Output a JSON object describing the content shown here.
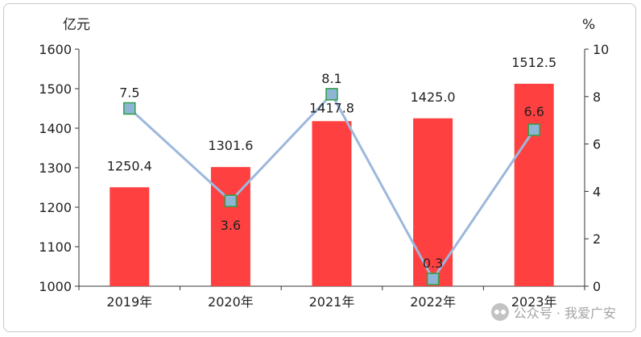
{
  "chart_data": {
    "type": "bar+line",
    "categories": [
      "2019年",
      "2020年",
      "2021年",
      "2022年",
      "2023年"
    ],
    "left_axis": {
      "unit": "亿元",
      "ylim": [
        1000,
        1600
      ],
      "ticks": [
        "1000",
        "1100",
        "1200",
        "1300",
        "1400",
        "1500",
        "1600"
      ]
    },
    "right_axis": {
      "unit": "%",
      "ylim": [
        0,
        10
      ],
      "ticks": [
        "0",
        "2",
        "4",
        "6",
        "8",
        "10"
      ]
    },
    "bar_series": {
      "values": [
        1250.4,
        1301.6,
        1417.8,
        1425.0,
        1512.5
      ],
      "labels": [
        "1250.4",
        "1301.6",
        "1417.8",
        "1425.0",
        "1512.5"
      ],
      "color": "#ff4040"
    },
    "line_series": {
      "values": [
        7.5,
        3.6,
        8.1,
        0.3,
        6.6
      ],
      "labels": [
        "7.5",
        "3.6",
        "8.1",
        "0.3",
        "6.6"
      ],
      "line_color": "#9db8dc",
      "marker_fill": "#8fb5d6",
      "marker_stroke": "#2ea043"
    },
    "grid": false
  },
  "watermark": {
    "text": "公众号 · 我爱广安",
    "icon": "wechat-icon"
  }
}
